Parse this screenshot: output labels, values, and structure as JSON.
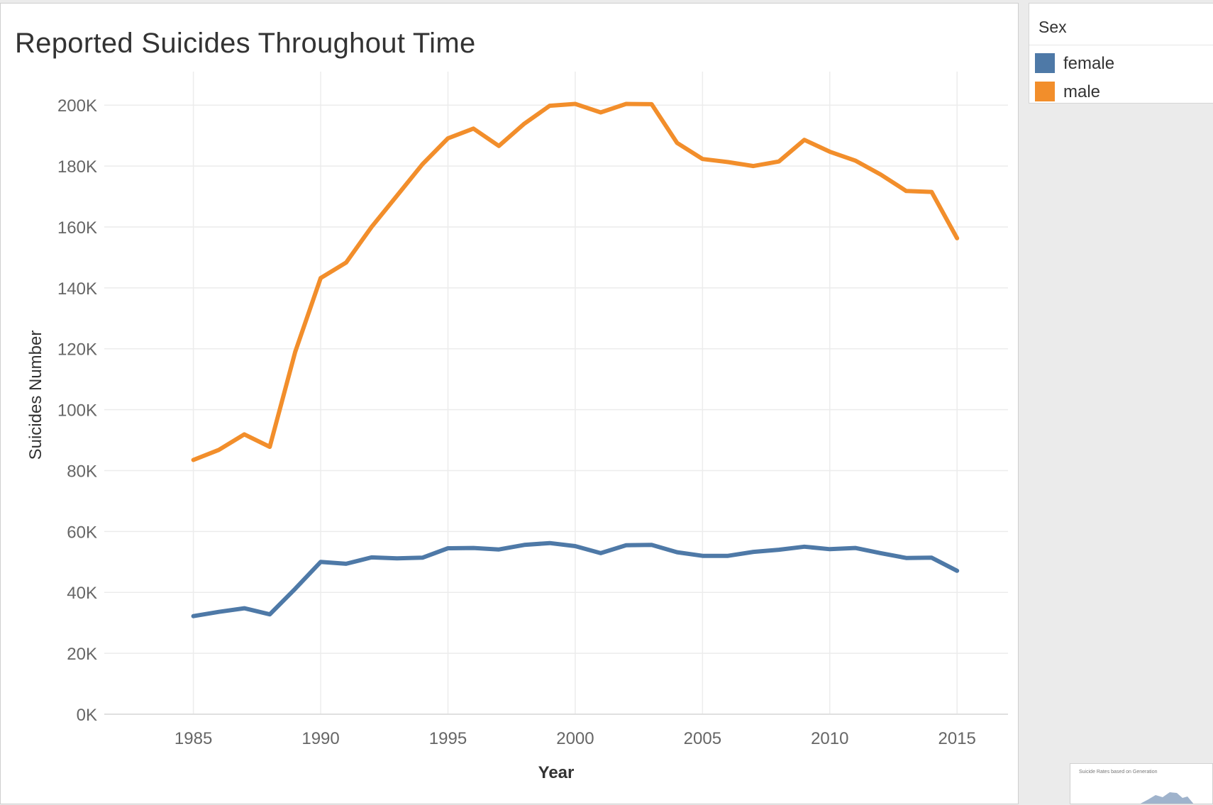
{
  "window": {
    "panel_title": "Reported Suicides Throughout Time"
  },
  "legend": {
    "title": "Sex",
    "items": [
      {
        "label": "female",
        "color": "#4e79a7"
      },
      {
        "label": "male",
        "color": "#f28e2b"
      }
    ]
  },
  "thumbnail": {
    "title": "Suicide Rates based on Generation"
  },
  "chart_data": {
    "type": "line",
    "title": "Reported Suicides Throughout Time",
    "xlabel": "Year",
    "ylabel": "Suicides Number",
    "x": [
      1985,
      1986,
      1987,
      1988,
      1989,
      1990,
      1991,
      1992,
      1993,
      1994,
      1995,
      1996,
      1997,
      1998,
      1999,
      2000,
      2001,
      2002,
      2003,
      2004,
      2005,
      2006,
      2007,
      2008,
      2009,
      2010,
      2011,
      2012,
      2013,
      2014,
      2015
    ],
    "xticks": [
      1985,
      1990,
      1995,
      2000,
      2005,
      2010,
      2015
    ],
    "xtick_labels": [
      "1985",
      "1990",
      "1995",
      "2000",
      "2005",
      "2010",
      "2015"
    ],
    "xlim": [
      1981.5,
      2017
    ],
    "yticks": [
      0,
      20000,
      40000,
      60000,
      80000,
      100000,
      120000,
      140000,
      160000,
      180000,
      200000
    ],
    "ytick_labels": [
      "0K",
      "20K",
      "40K",
      "60K",
      "80K",
      "100K",
      "120K",
      "140K",
      "160K",
      "180K",
      "200K"
    ],
    "ylim": [
      0,
      211000
    ],
    "grid": true,
    "legend_position": "right",
    "series": [
      {
        "name": "female",
        "color": "#4e79a7",
        "values": [
          32200,
          33600,
          34800,
          32800,
          41200,
          50000,
          49400,
          51500,
          51200,
          51400,
          54500,
          54600,
          54100,
          55600,
          56200,
          55200,
          52900,
          55500,
          55600,
          53200,
          52000,
          52000,
          53300,
          54000,
          55000,
          54200,
          54600,
          52900,
          51300,
          51400,
          47100
        ]
      },
      {
        "name": "male",
        "color": "#f28e2b",
        "values": [
          83500,
          86800,
          91900,
          87800,
          119000,
          143200,
          148300,
          160000,
          170300,
          180600,
          189100,
          192300,
          186600,
          193900,
          199800,
          200400,
          197600,
          200400,
          200300,
          187600,
          182300,
          181300,
          180000,
          181500,
          188600,
          184700,
          181800,
          177200,
          171800,
          171500,
          156300
        ]
      }
    ]
  }
}
